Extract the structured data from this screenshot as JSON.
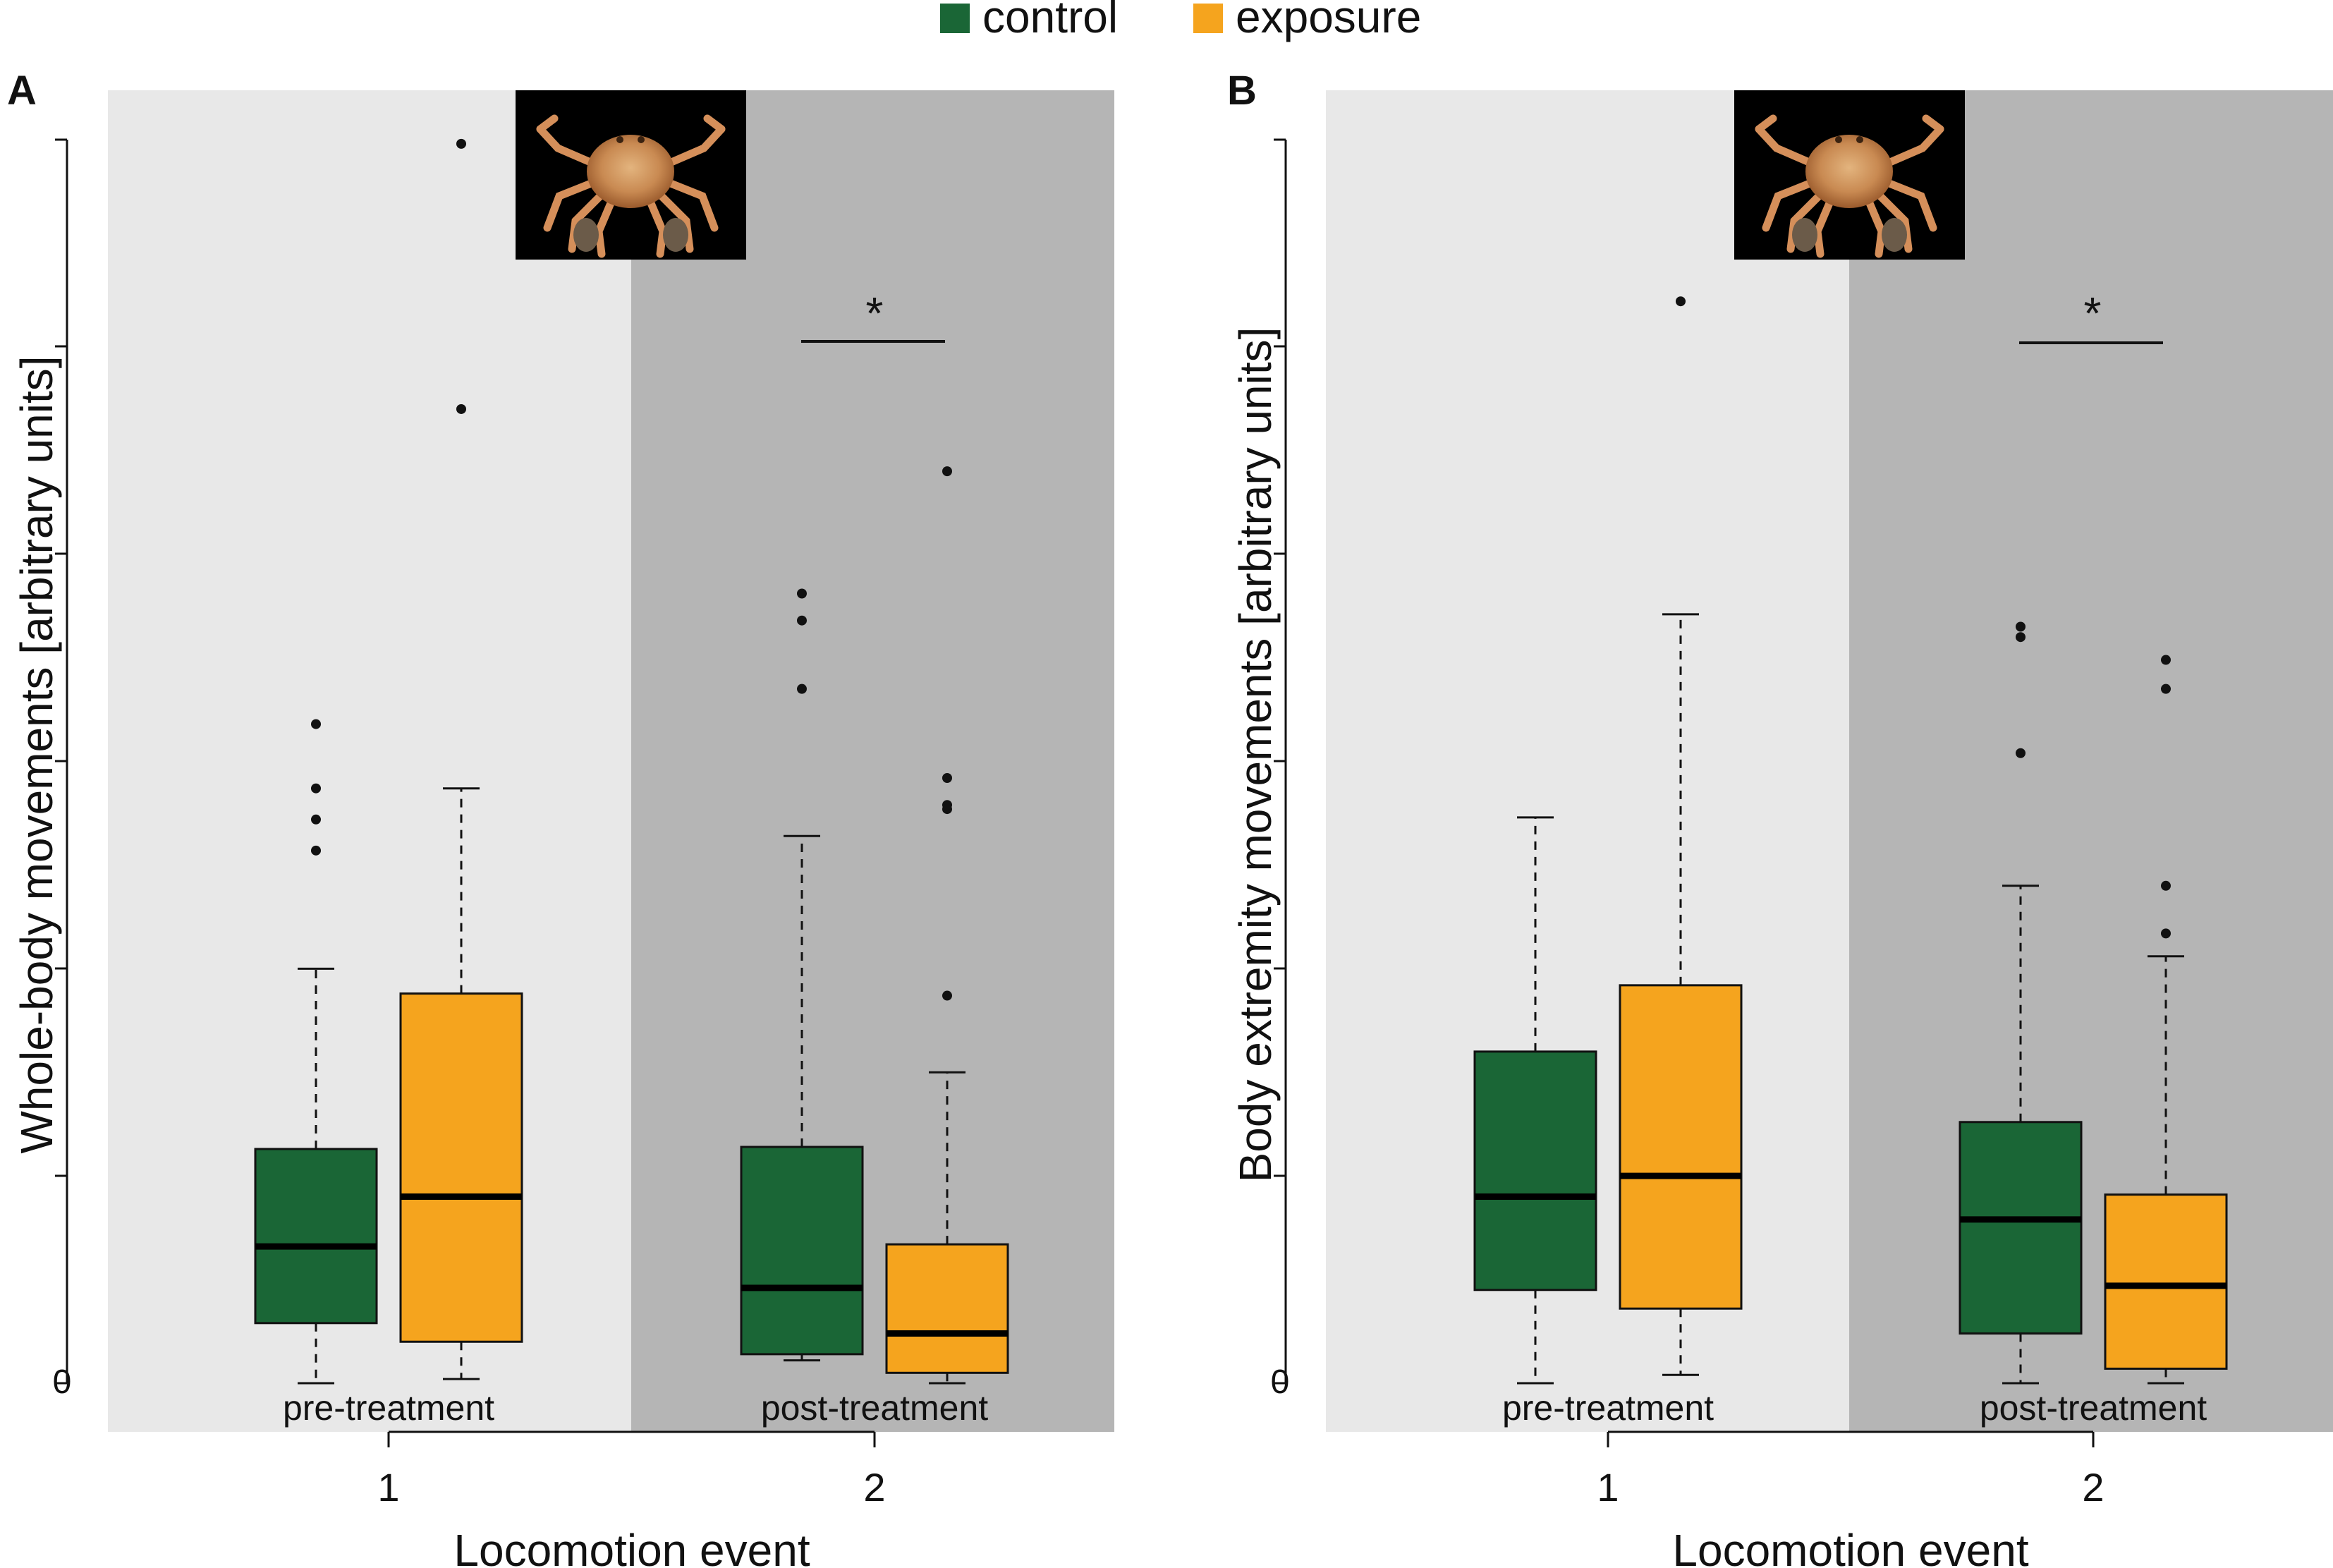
{
  "legend": {
    "items": [
      {
        "label": "control",
        "color": "#1a6636"
      },
      {
        "label": "exposure",
        "color": "#f5a41e"
      }
    ]
  },
  "colors": {
    "pre_bg": "#e8e8e8",
    "post_bg": "#b5b5b5",
    "control": "#1a6636",
    "exposure": "#f5a41e",
    "crab_icon": "crab-photo"
  },
  "chart_data": [
    {
      "type": "boxplot",
      "panel": "A",
      "ylabel": "Whole-body movements [arbitrary units]",
      "xlabel": "Locomotion event",
      "y_tick_labels": [
        "0"
      ],
      "ylim": [
        0,
        6
      ],
      "categories": [
        "1",
        "2"
      ],
      "category_sublabels": [
        "pre-treatment",
        "post-treatment"
      ],
      "significance": "*",
      "series": [
        {
          "name": "control",
          "boxes": [
            {
              "whisker_low": 0.0,
              "q1": 0.29,
              "median": 0.66,
              "q3": 1.13,
              "whisker_high": 2.0,
              "outliers": [
                2.57,
                2.72,
                2.87,
                3.18
              ]
            },
            {
              "whisker_low": 0.11,
              "q1": 0.14,
              "median": 0.46,
              "q3": 1.14,
              "whisker_high": 2.64,
              "outliers": [
                3.35,
                3.68,
                3.81
              ]
            }
          ]
        },
        {
          "name": "exposure",
          "boxes": [
            {
              "whisker_low": 0.02,
              "q1": 0.2,
              "median": 0.9,
              "q3": 1.88,
              "whisker_high": 2.87,
              "outliers": [
                4.7,
                5.98
              ]
            },
            {
              "whisker_low": 0.0,
              "q1": 0.05,
              "median": 0.24,
              "q3": 0.67,
              "whisker_high": 1.5,
              "outliers": [
                1.87,
                2.77,
                2.79,
                2.92,
                4.4
              ]
            }
          ]
        }
      ]
    },
    {
      "type": "boxplot",
      "panel": "B",
      "ylabel": "Body extremity movements [arbitrary units]",
      "xlabel": "Locomotion event",
      "y_tick_labels": [
        "0"
      ],
      "ylim": [
        0,
        6
      ],
      "categories": [
        "1",
        "2"
      ],
      "category_sublabels": [
        "pre-treatment",
        "post-treatment"
      ],
      "significance": "*",
      "series": [
        {
          "name": "control",
          "boxes": [
            {
              "whisker_low": 0.0,
              "q1": 0.45,
              "median": 0.9,
              "q3": 1.6,
              "whisker_high": 2.73,
              "outliers": []
            },
            {
              "whisker_low": 0.0,
              "q1": 0.24,
              "median": 0.79,
              "q3": 1.26,
              "whisker_high": 2.4,
              "outliers": [
                3.04,
                3.6,
                3.65
              ]
            }
          ]
        },
        {
          "name": "exposure",
          "boxes": [
            {
              "whisker_low": 0.04,
              "q1": 0.36,
              "median": 1.0,
              "q3": 1.92,
              "whisker_high": 3.71,
              "outliers": [
                5.22
              ]
            },
            {
              "whisker_low": 0.0,
              "q1": 0.07,
              "median": 0.47,
              "q3": 0.91,
              "whisker_high": 2.06,
              "outliers": [
                2.17,
                2.4,
                3.35,
                3.49
              ]
            }
          ]
        }
      ]
    }
  ]
}
